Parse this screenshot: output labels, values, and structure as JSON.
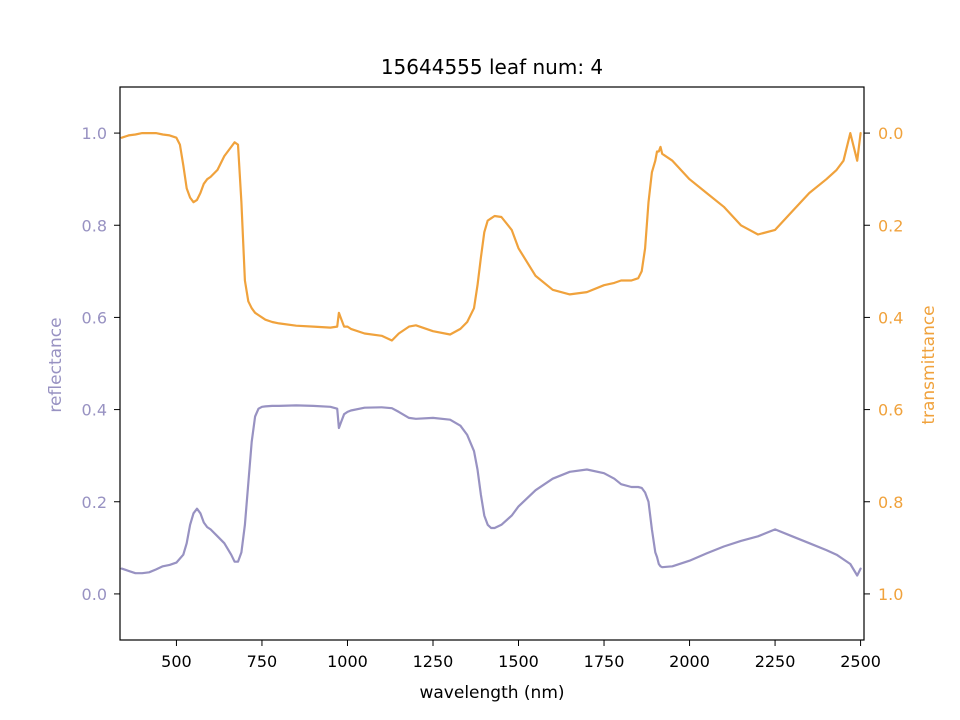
{
  "chart_data": {
    "type": "line",
    "title": "15644555 leaf num: 4",
    "xlabel": "wavelength (nm)",
    "ylabel_left": "reflectance",
    "ylabel_right": "transmittance",
    "xlim": [
      335,
      2510
    ],
    "ylim_left": [
      -0.1,
      1.1
    ],
    "ylim_right": [
      1.1,
      -0.1
    ],
    "right_axis_inverted": true,
    "x_ticks": [
      500,
      750,
      1000,
      1250,
      1500,
      1750,
      2000,
      2250,
      2500
    ],
    "x_tick_labels": [
      "500",
      "750",
      "1000",
      "1250",
      "1500",
      "1750",
      "2000",
      "2250",
      "2500"
    ],
    "y_left_ticks": [
      0.0,
      0.2,
      0.4,
      0.6,
      0.8,
      1.0
    ],
    "y_left_tick_labels": [
      "0.0",
      "0.2",
      "0.4",
      "0.6",
      "0.8",
      "1.0"
    ],
    "y_right_ticks": [
      0.0,
      0.2,
      0.4,
      0.6,
      0.8,
      1.0
    ],
    "y_right_tick_labels": [
      "0.0",
      "0.2",
      "0.4",
      "0.6",
      "0.8",
      "1.0"
    ],
    "grid": false,
    "legend": "none",
    "colors": {
      "reflectance": "#9892c2",
      "transmittance": "#f0a23c"
    },
    "series": [
      {
        "axis": "left",
        "color": "#9892c2",
        "x": [
          340,
          360,
          380,
          400,
          420,
          440,
          460,
          480,
          500,
          520,
          530,
          540,
          550,
          560,
          570,
          580,
          590,
          600,
          620,
          640,
          660,
          670,
          680,
          690,
          700,
          710,
          720,
          730,
          740,
          750,
          760,
          780,
          800,
          850,
          900,
          950,
          970,
          975,
          980,
          990,
          1000,
          1010,
          1050,
          1100,
          1130,
          1150,
          1180,
          1200,
          1250,
          1300,
          1330,
          1350,
          1370,
          1380,
          1390,
          1400,
          1410,
          1420,
          1430,
          1450,
          1480,
          1500,
          1550,
          1600,
          1650,
          1700,
          1750,
          1780,
          1800,
          1830,
          1850,
          1860,
          1870,
          1880,
          1890,
          1900,
          1905,
          1910,
          1915,
          1920,
          1950,
          2000,
          2050,
          2100,
          2150,
          2200,
          2250,
          2300,
          2350,
          2400,
          2430,
          2450,
          2470,
          2490,
          2500
        ],
        "y": [
          0.055,
          0.05,
          0.045,
          0.045,
          0.047,
          0.053,
          0.06,
          0.063,
          0.068,
          0.085,
          0.11,
          0.15,
          0.175,
          0.185,
          0.175,
          0.155,
          0.145,
          0.14,
          0.125,
          0.11,
          0.085,
          0.07,
          0.07,
          0.09,
          0.15,
          0.24,
          0.33,
          0.385,
          0.402,
          0.406,
          0.407,
          0.408,
          0.408,
          0.409,
          0.408,
          0.406,
          0.402,
          0.36,
          0.37,
          0.39,
          0.395,
          0.398,
          0.404,
          0.405,
          0.403,
          0.395,
          0.382,
          0.38,
          0.382,
          0.378,
          0.365,
          0.345,
          0.31,
          0.27,
          0.215,
          0.17,
          0.15,
          0.143,
          0.143,
          0.15,
          0.17,
          0.19,
          0.225,
          0.25,
          0.265,
          0.27,
          0.262,
          0.25,
          0.238,
          0.232,
          0.232,
          0.23,
          0.22,
          0.2,
          0.14,
          0.09,
          0.08,
          0.065,
          0.06,
          0.058,
          0.06,
          0.072,
          0.088,
          0.103,
          0.115,
          0.125,
          0.14,
          0.125,
          0.11,
          0.095,
          0.085,
          0.075,
          0.065,
          0.04,
          0.055
        ]
      },
      {
        "axis": "right",
        "color": "#f0a23c",
        "x": [
          340,
          360,
          380,
          400,
          420,
          440,
          460,
          480,
          500,
          510,
          520,
          530,
          540,
          550,
          560,
          570,
          580,
          590,
          600,
          620,
          640,
          660,
          670,
          680,
          690,
          700,
          710,
          720,
          730,
          740,
          750,
          760,
          780,
          800,
          850,
          900,
          950,
          970,
          975,
          980,
          990,
          1000,
          1010,
          1050,
          1100,
          1130,
          1150,
          1180,
          1200,
          1250,
          1300,
          1330,
          1350,
          1370,
          1380,
          1390,
          1400,
          1410,
          1420,
          1430,
          1450,
          1480,
          1500,
          1550,
          1600,
          1650,
          1700,
          1750,
          1780,
          1800,
          1830,
          1850,
          1860,
          1870,
          1880,
          1890,
          1900,
          1905,
          1910,
          1915,
          1920,
          1950,
          2000,
          2050,
          2100,
          2150,
          2200,
          2250,
          2300,
          2350,
          2400,
          2430,
          2450,
          2470,
          2490,
          2500
        ],
        "y": [
          0.01,
          0.005,
          0.003,
          0.0,
          0.0,
          0.0,
          0.003,
          0.005,
          0.01,
          0.025,
          0.07,
          0.12,
          0.14,
          0.15,
          0.145,
          0.13,
          0.11,
          0.1,
          0.095,
          0.08,
          0.05,
          0.03,
          0.02,
          0.025,
          0.15,
          0.32,
          0.365,
          0.38,
          0.39,
          0.395,
          0.4,
          0.405,
          0.41,
          0.413,
          0.418,
          0.42,
          0.422,
          0.42,
          0.39,
          0.4,
          0.42,
          0.42,
          0.425,
          0.435,
          0.44,
          0.45,
          0.435,
          0.42,
          0.417,
          0.43,
          0.437,
          0.425,
          0.41,
          0.38,
          0.33,
          0.27,
          0.215,
          0.19,
          0.185,
          0.18,
          0.182,
          0.21,
          0.25,
          0.31,
          0.34,
          0.35,
          0.345,
          0.33,
          0.325,
          0.32,
          0.32,
          0.315,
          0.3,
          0.25,
          0.15,
          0.085,
          0.06,
          0.04,
          0.04,
          0.03,
          0.045,
          0.06,
          0.1,
          0.13,
          0.16,
          0.2,
          0.22,
          0.21,
          0.17,
          0.13,
          0.1,
          0.08,
          0.06,
          0.0,
          0.06,
          0.0
        ]
      }
    ]
  }
}
